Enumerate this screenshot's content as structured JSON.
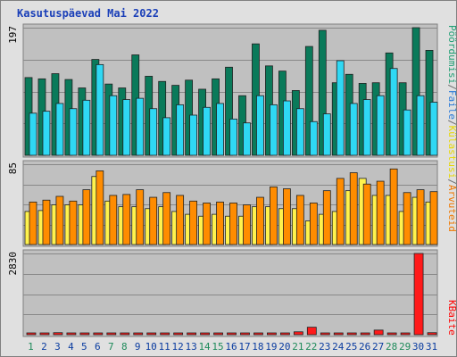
{
  "chart_data": {
    "type": "bar",
    "title": "Kasutuspäevad Mai 2022",
    "categories": [
      "1",
      "2",
      "3",
      "4",
      "5",
      "6",
      "7",
      "8",
      "9",
      "10",
      "11",
      "12",
      "13",
      "14",
      "15",
      "16",
      "17",
      "18",
      "19",
      "20",
      "21",
      "22",
      "23",
      "24",
      "25",
      "26",
      "27",
      "28",
      "29",
      "30",
      "31"
    ],
    "weekend_days": [
      "1",
      "7",
      "8",
      "14",
      "15",
      "21",
      "22",
      "28",
      "29"
    ],
    "panels": [
      {
        "name": "hits",
        "ymax": 197,
        "ymax_label": "197",
        "series": [
          {
            "name": "Pöördumisi",
            "color": "#0a7a5a",
            "values": [
              120,
              118,
              126,
              117,
              104,
              148,
              110,
              104,
              155,
              122,
              114,
              108,
              116,
              102,
              118,
              136,
              92,
              172,
              138,
              130,
              100,
              168,
              193,
              112,
              125,
              111,
              112,
              158,
              112,
              197,
              162
            ]
          },
          {
            "name": "Faile",
            "color": "#2fd8f4",
            "values": [
              65,
              68,
              80,
              72,
              85,
              140,
              92,
              86,
              88,
              72,
              58,
              78,
              62,
              74,
              80,
              56,
              50,
              92,
              78,
              84,
              72,
              52,
              64,
              146,
              80,
              86,
              92,
              134,
              70,
              92,
              82
            ]
          }
        ]
      },
      {
        "name": "visits",
        "ymax": 85,
        "ymax_label": "85",
        "series": [
          {
            "name": "Külastusi",
            "color": "#fff24d",
            "values": [
              35,
              36,
              42,
              42,
              42,
              72,
              46,
              40,
              40,
              38,
              40,
              35,
              32,
              30,
              32,
              30,
              30,
              40,
              40,
              38,
              38,
              25,
              32,
              35,
              57,
              70,
              52,
              52,
              35,
              50,
              45
            ]
          },
          {
            "name": "Arvuteid",
            "color": "#ff8c00",
            "values": [
              45,
              47,
              51,
              46,
              58,
              78,
              52,
              53,
              58,
              50,
              55,
              52,
              46,
              44,
              45,
              44,
              42,
              50,
              61,
              59,
              52,
              44,
              57,
              70,
              76,
              64,
              67,
              80,
              55,
              58,
              56
            ]
          }
        ]
      },
      {
        "name": "kbytes",
        "ymax": 2830,
        "ymax_label": "2830",
        "series": [
          {
            "name": "KBaite",
            "color": "#ff1a1a",
            "values": [
              25,
              60,
              70,
              55,
              30,
              50,
              30,
              25,
              25,
              25,
              25,
              25,
              25,
              25,
              25,
              25,
              25,
              50,
              25,
              30,
              100,
              260,
              25,
              25,
              25,
              25,
              160,
              60,
              40,
              2830,
              70
            ]
          }
        ]
      }
    ],
    "right_labels": [
      {
        "text": "Pöördumisi",
        "color": "#1f9e73"
      },
      {
        "text": "/",
        "color": "#6a6a6a"
      },
      {
        "text": "Faile",
        "color": "#2a7ad8"
      },
      {
        "text": "/",
        "color": "#6a6a6a"
      },
      {
        "text": "Külastusi",
        "color": "#e8d800"
      },
      {
        "text": "/",
        "color": "#6a6a6a"
      },
      {
        "text": "Arvuteid",
        "color": "#f07800"
      }
    ],
    "kbytes_label": {
      "text": "KBaite",
      "color": "#ff0000"
    },
    "colors": {
      "background": "#e0e0e0",
      "plot_bg": "#c0c0c0",
      "grid": "#888888",
      "weekday_label": "#0a3ca0",
      "weekend_label": "#1e8a5a"
    }
  }
}
